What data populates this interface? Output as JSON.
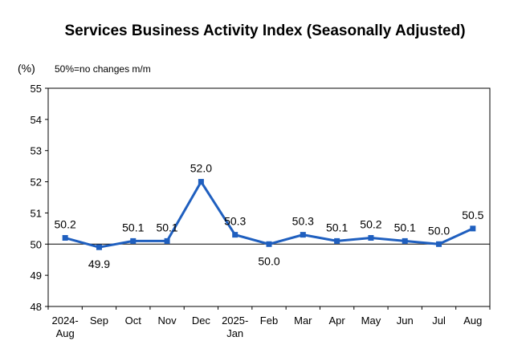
{
  "chart_data": {
    "type": "line",
    "title": "Services Business Activity Index (Seasonally Adjusted)",
    "unit_label": "(%)",
    "note": "50%=no changes m/m",
    "ylim": [
      48,
      55
    ],
    "yticks": [
      48,
      49,
      50,
      51,
      52,
      53,
      54,
      55
    ],
    "reference_line": 50,
    "categories": [
      [
        "2024-",
        "Aug"
      ],
      [
        "Sep"
      ],
      [
        "Oct"
      ],
      [
        "Nov"
      ],
      [
        "Dec"
      ],
      [
        "2025-",
        "Jan"
      ],
      [
        "Feb"
      ],
      [
        "Mar"
      ],
      [
        "Apr"
      ],
      [
        "May"
      ],
      [
        "Jun"
      ],
      [
        "Jul"
      ],
      [
        "Aug"
      ]
    ],
    "series": [
      {
        "values": [
          50.2,
          49.9,
          50.1,
          50.1,
          52.0,
          50.3,
          50.0,
          50.3,
          50.1,
          50.2,
          50.1,
          50.0,
          50.5
        ],
        "labels": [
          "50.2",
          "49.9",
          "50.1",
          "50.1",
          "52.0",
          "50.3",
          "50.0",
          "50.3",
          "50.1",
          "50.2",
          "50.1",
          "50.0",
          "50.5"
        ],
        "label_positions": [
          "above",
          "below",
          "above",
          "above",
          "above",
          "above",
          "below",
          "above",
          "above",
          "above",
          "above",
          "above",
          "above"
        ],
        "color": "#1f5fbf"
      }
    ],
    "grid": false,
    "legend": "none"
  }
}
